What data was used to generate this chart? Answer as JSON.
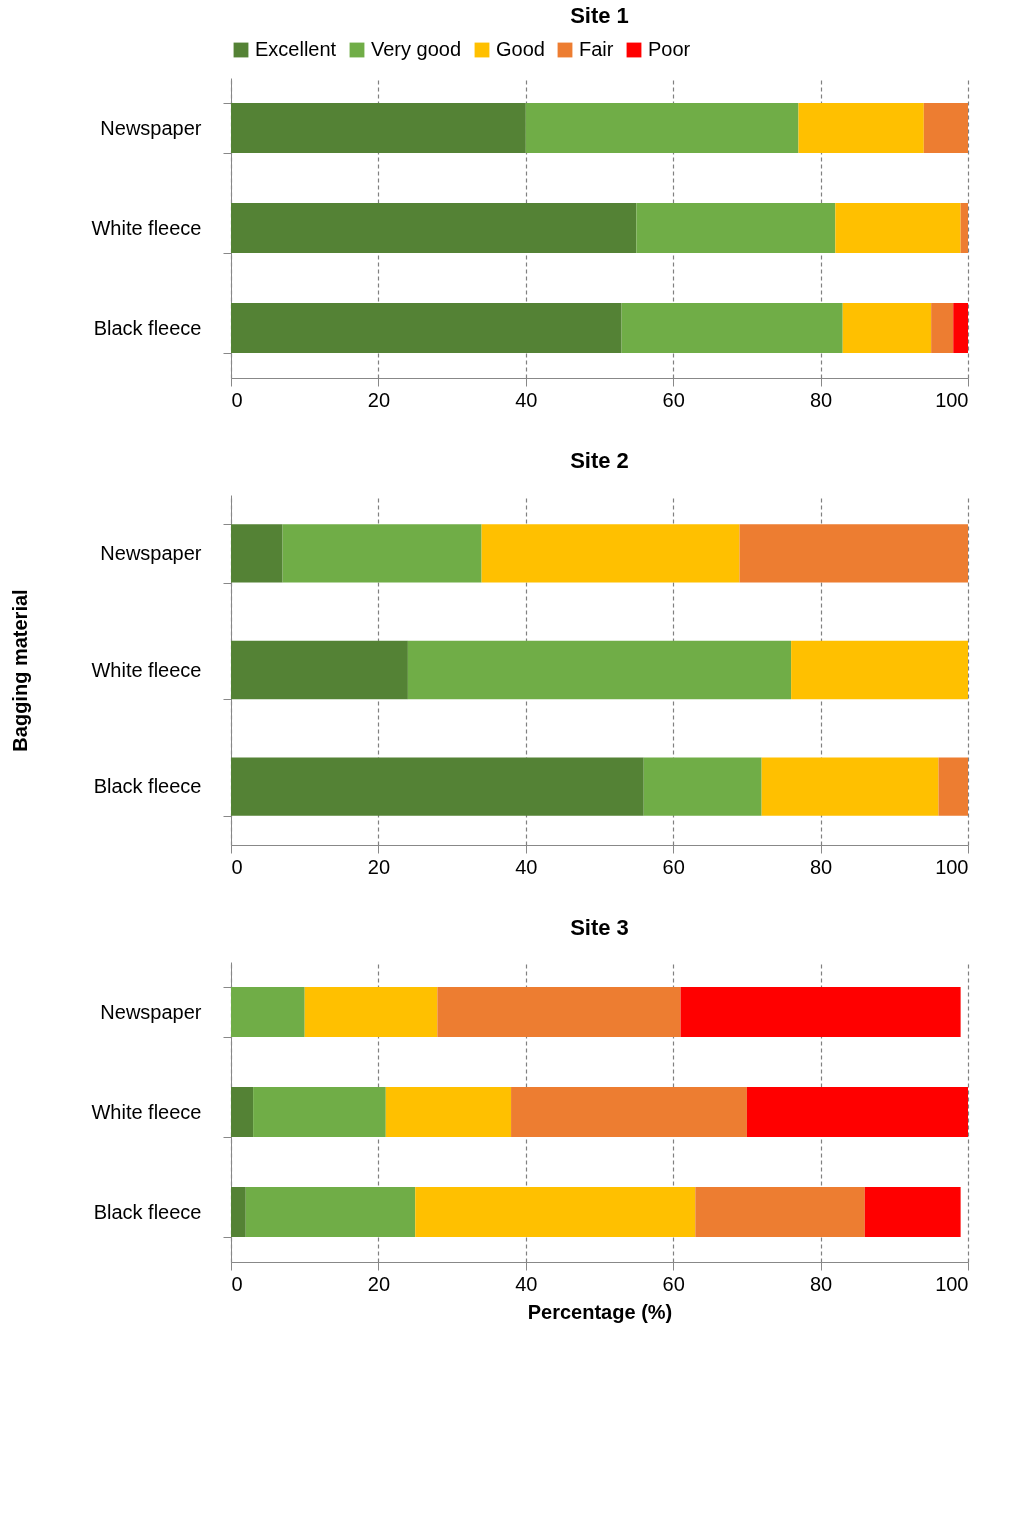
{
  "chart_data": [
    {
      "type": "bar",
      "title": "Site 1",
      "orientation": "horizontal",
      "stacked": true,
      "categories": [
        "Newspaper",
        "White fleece",
        "Black fleece"
      ],
      "series": [
        {
          "name": "Excellent",
          "color": "#548235",
          "values": [
            40,
            55,
            53
          ]
        },
        {
          "name": "Very good",
          "color": "#70ad47",
          "values": [
            37,
            27,
            30
          ]
        },
        {
          "name": "Good",
          "color": "#ffc000",
          "values": [
            17,
            17,
            12
          ]
        },
        {
          "name": "Fair",
          "color": "#ed7d31",
          "values": [
            6,
            1,
            3
          ]
        },
        {
          "name": "Poor",
          "color": "#ff0000",
          "values": [
            0,
            0,
            2
          ]
        }
      ],
      "xlim": [
        0,
        100
      ],
      "xticks": [
        0,
        20,
        40,
        60,
        80,
        100
      ],
      "grid": "x",
      "legend": "top"
    },
    {
      "type": "bar",
      "title": "Site 2",
      "ylabel": "Bagging material",
      "orientation": "horizontal",
      "stacked": true,
      "categories": [
        "Newspaper",
        "White fleece",
        "Black fleece"
      ],
      "series": [
        {
          "color": "#548235",
          "values": [
            7,
            24,
            56
          ]
        },
        {
          "color": "#70ad47",
          "values": [
            27,
            52,
            16
          ]
        },
        {
          "color": "#ffc000",
          "values": [
            35,
            24,
            24
          ]
        },
        {
          "color": "#ed7d31",
          "values": [
            31,
            0,
            4
          ]
        },
        {
          "color": "#ff0000",
          "values": [
            0,
            0,
            0
          ]
        }
      ],
      "xlim": [
        0,
        100
      ],
      "xticks": [
        0,
        20,
        40,
        60,
        80,
        100
      ],
      "grid": "x"
    },
    {
      "type": "bar",
      "title": "Site 3",
      "xlabel": "Percentage (%)",
      "orientation": "horizontal",
      "stacked": true,
      "categories": [
        "Newspaper",
        "White fleece",
        "Black fleece"
      ],
      "series": [
        {
          "color": "#548235",
          "values": [
            0,
            3,
            2
          ]
        },
        {
          "color": "#70ad47",
          "values": [
            10,
            18,
            23
          ]
        },
        {
          "color": "#ffc000",
          "values": [
            18,
            17,
            38
          ]
        },
        {
          "color": "#ed7d31",
          "values": [
            33,
            32,
            23
          ]
        },
        {
          "color": "#ff0000",
          "values": [
            38,
            30,
            13
          ]
        }
      ],
      "xlim": [
        0,
        100
      ],
      "xticks": [
        0,
        20,
        40,
        60,
        80,
        100
      ],
      "grid": "x"
    }
  ]
}
